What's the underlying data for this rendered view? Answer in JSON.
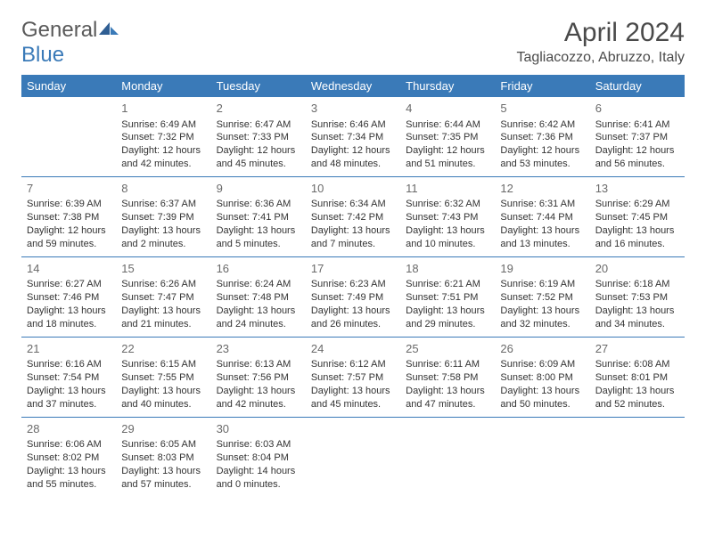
{
  "header": {
    "logo_general": "General",
    "logo_blue": "Blue",
    "month_title": "April 2024",
    "location": "Tagliacozzo, Abruzzo, Italy"
  },
  "colors": {
    "header_bg": "#3a7ab8",
    "header_text": "#ffffff",
    "row_divider": "#3a7ab8",
    "body_text": "#333333",
    "daynum_text": "#6a6a6a",
    "logo_gray": "#5a5a5a",
    "logo_blue": "#3a7ab8"
  },
  "weekdays": [
    "Sunday",
    "Monday",
    "Tuesday",
    "Wednesday",
    "Thursday",
    "Friday",
    "Saturday"
  ],
  "weeks": [
    [
      null,
      {
        "n": "1",
        "sr": "Sunrise: 6:49 AM",
        "ss": "Sunset: 7:32 PM",
        "d1": "Daylight: 12 hours",
        "d2": "and 42 minutes."
      },
      {
        "n": "2",
        "sr": "Sunrise: 6:47 AM",
        "ss": "Sunset: 7:33 PM",
        "d1": "Daylight: 12 hours",
        "d2": "and 45 minutes."
      },
      {
        "n": "3",
        "sr": "Sunrise: 6:46 AM",
        "ss": "Sunset: 7:34 PM",
        "d1": "Daylight: 12 hours",
        "d2": "and 48 minutes."
      },
      {
        "n": "4",
        "sr": "Sunrise: 6:44 AM",
        "ss": "Sunset: 7:35 PM",
        "d1": "Daylight: 12 hours",
        "d2": "and 51 minutes."
      },
      {
        "n": "5",
        "sr": "Sunrise: 6:42 AM",
        "ss": "Sunset: 7:36 PM",
        "d1": "Daylight: 12 hours",
        "d2": "and 53 minutes."
      },
      {
        "n": "6",
        "sr": "Sunrise: 6:41 AM",
        "ss": "Sunset: 7:37 PM",
        "d1": "Daylight: 12 hours",
        "d2": "and 56 minutes."
      }
    ],
    [
      {
        "n": "7",
        "sr": "Sunrise: 6:39 AM",
        "ss": "Sunset: 7:38 PM",
        "d1": "Daylight: 12 hours",
        "d2": "and 59 minutes."
      },
      {
        "n": "8",
        "sr": "Sunrise: 6:37 AM",
        "ss": "Sunset: 7:39 PM",
        "d1": "Daylight: 13 hours",
        "d2": "and 2 minutes."
      },
      {
        "n": "9",
        "sr": "Sunrise: 6:36 AM",
        "ss": "Sunset: 7:41 PM",
        "d1": "Daylight: 13 hours",
        "d2": "and 5 minutes."
      },
      {
        "n": "10",
        "sr": "Sunrise: 6:34 AM",
        "ss": "Sunset: 7:42 PM",
        "d1": "Daylight: 13 hours",
        "d2": "and 7 minutes."
      },
      {
        "n": "11",
        "sr": "Sunrise: 6:32 AM",
        "ss": "Sunset: 7:43 PM",
        "d1": "Daylight: 13 hours",
        "d2": "and 10 minutes."
      },
      {
        "n": "12",
        "sr": "Sunrise: 6:31 AM",
        "ss": "Sunset: 7:44 PM",
        "d1": "Daylight: 13 hours",
        "d2": "and 13 minutes."
      },
      {
        "n": "13",
        "sr": "Sunrise: 6:29 AM",
        "ss": "Sunset: 7:45 PM",
        "d1": "Daylight: 13 hours",
        "d2": "and 16 minutes."
      }
    ],
    [
      {
        "n": "14",
        "sr": "Sunrise: 6:27 AM",
        "ss": "Sunset: 7:46 PM",
        "d1": "Daylight: 13 hours",
        "d2": "and 18 minutes."
      },
      {
        "n": "15",
        "sr": "Sunrise: 6:26 AM",
        "ss": "Sunset: 7:47 PM",
        "d1": "Daylight: 13 hours",
        "d2": "and 21 minutes."
      },
      {
        "n": "16",
        "sr": "Sunrise: 6:24 AM",
        "ss": "Sunset: 7:48 PM",
        "d1": "Daylight: 13 hours",
        "d2": "and 24 minutes."
      },
      {
        "n": "17",
        "sr": "Sunrise: 6:23 AM",
        "ss": "Sunset: 7:49 PM",
        "d1": "Daylight: 13 hours",
        "d2": "and 26 minutes."
      },
      {
        "n": "18",
        "sr": "Sunrise: 6:21 AM",
        "ss": "Sunset: 7:51 PM",
        "d1": "Daylight: 13 hours",
        "d2": "and 29 minutes."
      },
      {
        "n": "19",
        "sr": "Sunrise: 6:19 AM",
        "ss": "Sunset: 7:52 PM",
        "d1": "Daylight: 13 hours",
        "d2": "and 32 minutes."
      },
      {
        "n": "20",
        "sr": "Sunrise: 6:18 AM",
        "ss": "Sunset: 7:53 PM",
        "d1": "Daylight: 13 hours",
        "d2": "and 34 minutes."
      }
    ],
    [
      {
        "n": "21",
        "sr": "Sunrise: 6:16 AM",
        "ss": "Sunset: 7:54 PM",
        "d1": "Daylight: 13 hours",
        "d2": "and 37 minutes."
      },
      {
        "n": "22",
        "sr": "Sunrise: 6:15 AM",
        "ss": "Sunset: 7:55 PM",
        "d1": "Daylight: 13 hours",
        "d2": "and 40 minutes."
      },
      {
        "n": "23",
        "sr": "Sunrise: 6:13 AM",
        "ss": "Sunset: 7:56 PM",
        "d1": "Daylight: 13 hours",
        "d2": "and 42 minutes."
      },
      {
        "n": "24",
        "sr": "Sunrise: 6:12 AM",
        "ss": "Sunset: 7:57 PM",
        "d1": "Daylight: 13 hours",
        "d2": "and 45 minutes."
      },
      {
        "n": "25",
        "sr": "Sunrise: 6:11 AM",
        "ss": "Sunset: 7:58 PM",
        "d1": "Daylight: 13 hours",
        "d2": "and 47 minutes."
      },
      {
        "n": "26",
        "sr": "Sunrise: 6:09 AM",
        "ss": "Sunset: 8:00 PM",
        "d1": "Daylight: 13 hours",
        "d2": "and 50 minutes."
      },
      {
        "n": "27",
        "sr": "Sunrise: 6:08 AM",
        "ss": "Sunset: 8:01 PM",
        "d1": "Daylight: 13 hours",
        "d2": "and 52 minutes."
      }
    ],
    [
      {
        "n": "28",
        "sr": "Sunrise: 6:06 AM",
        "ss": "Sunset: 8:02 PM",
        "d1": "Daylight: 13 hours",
        "d2": "and 55 minutes."
      },
      {
        "n": "29",
        "sr": "Sunrise: 6:05 AM",
        "ss": "Sunset: 8:03 PM",
        "d1": "Daylight: 13 hours",
        "d2": "and 57 minutes."
      },
      {
        "n": "30",
        "sr": "Sunrise: 6:03 AM",
        "ss": "Sunset: 8:04 PM",
        "d1": "Daylight: 14 hours",
        "d2": "and 0 minutes."
      },
      null,
      null,
      null,
      null
    ]
  ]
}
